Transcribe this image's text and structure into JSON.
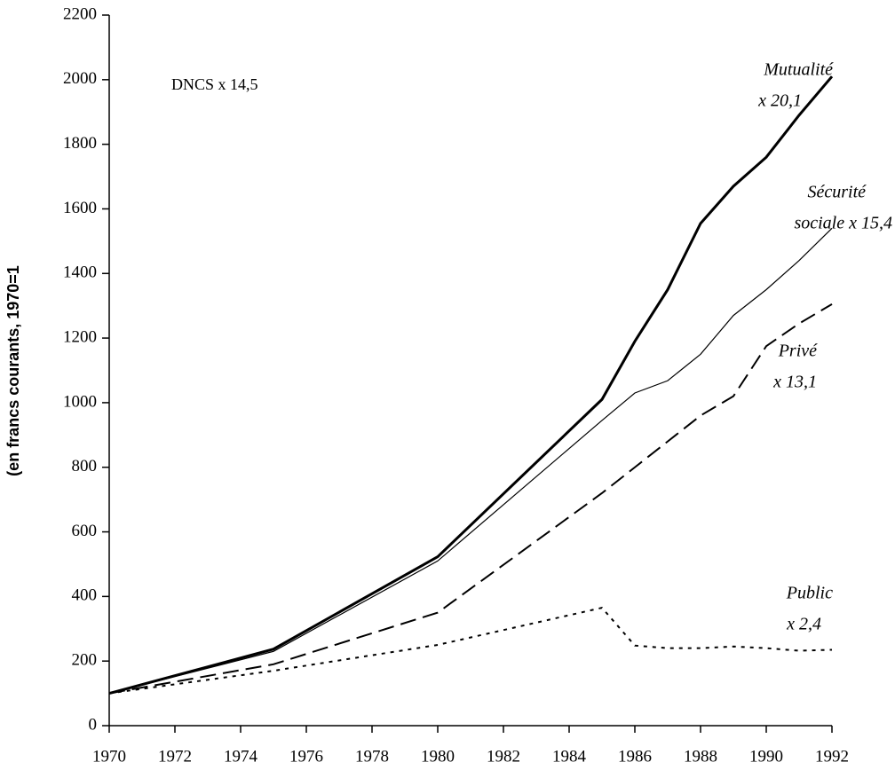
{
  "chart_data": {
    "type": "line",
    "y_label": "(en francs courants, 1970=1",
    "annotation": "DNCS x 14,5",
    "x": [
      1970,
      1975,
      1980,
      1985,
      1986,
      1987,
      1988,
      1989,
      1990,
      1991,
      1992
    ],
    "xlim": [
      1970,
      1992
    ],
    "xticks": [
      1970,
      1972,
      1974,
      1976,
      1978,
      1980,
      1982,
      1984,
      1986,
      1988,
      1990,
      1992
    ],
    "ylim": [
      0,
      2200
    ],
    "yticks": [
      0,
      200,
      400,
      600,
      800,
      1000,
      1200,
      1400,
      1600,
      1800,
      2000,
      2200
    ],
    "grid": false,
    "series": [
      {
        "label_lines": [
          "Mutualité",
          "x 20,1"
        ],
        "color": "#000000",
        "style": "solid",
        "width": 3,
        "values": [
          100,
          237,
          523,
          1010,
          1190,
          1350,
          1555,
          1670,
          1760,
          1890,
          2010
        ]
      },
      {
        "label_lines": [
          "Sécurité",
          "sociale x 15,4"
        ],
        "color": "#000000",
        "style": "solid",
        "width": 1.2,
        "values": [
          100,
          230,
          510,
          945,
          1030,
          1068,
          1150,
          1270,
          1350,
          1440,
          1540
        ]
      },
      {
        "label_lines": [
          "Privé",
          "x 13,1"
        ],
        "color": "#000000",
        "style": "dashed",
        "width": 2,
        "values": [
          100,
          190,
          350,
          720,
          800,
          880,
          960,
          1020,
          1175,
          1245,
          1305
        ]
      },
      {
        "label_lines": [
          "Public",
          "x 2,4"
        ],
        "color": "#000000",
        "style": "dotted",
        "width": 2,
        "values": [
          100,
          170,
          250,
          365,
          248,
          240,
          240,
          245,
          240,
          232,
          235
        ]
      }
    ]
  }
}
